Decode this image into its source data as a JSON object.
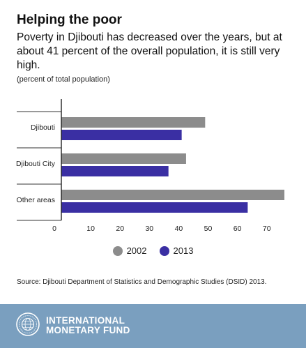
{
  "header": {
    "title": "Helping the poor",
    "subtitle": "Poverty in Djibouti has decreased over the years, but at about 41 percent of the overall population, it is still very high.",
    "unit_note": "(percent of total population)"
  },
  "chart_data": {
    "type": "bar",
    "orientation": "horizontal",
    "categories": [
      "Djibouti",
      "Djibouti City",
      "Other areas"
    ],
    "series": [
      {
        "name": "2002",
        "values": [
          49,
          42.5,
          76
        ],
        "color": "#8c8c8c"
      },
      {
        "name": "2013",
        "values": [
          41,
          36.5,
          63.5
        ],
        "color": "#3a2fa3"
      }
    ],
    "xlim": [
      0,
      76
    ],
    "xticks": [
      0,
      10,
      20,
      30,
      40,
      50,
      60,
      70
    ],
    "legend_position": "bottom"
  },
  "source": "Source: Djibouti Department of Statistics and Demographic Studies (DSID) 2013.",
  "footer": {
    "name_line1": "INTERNATIONAL",
    "name_line2": "MONETARY FUND",
    "logo_icon": "imf-seal-icon",
    "background": "#7a9fbf"
  }
}
